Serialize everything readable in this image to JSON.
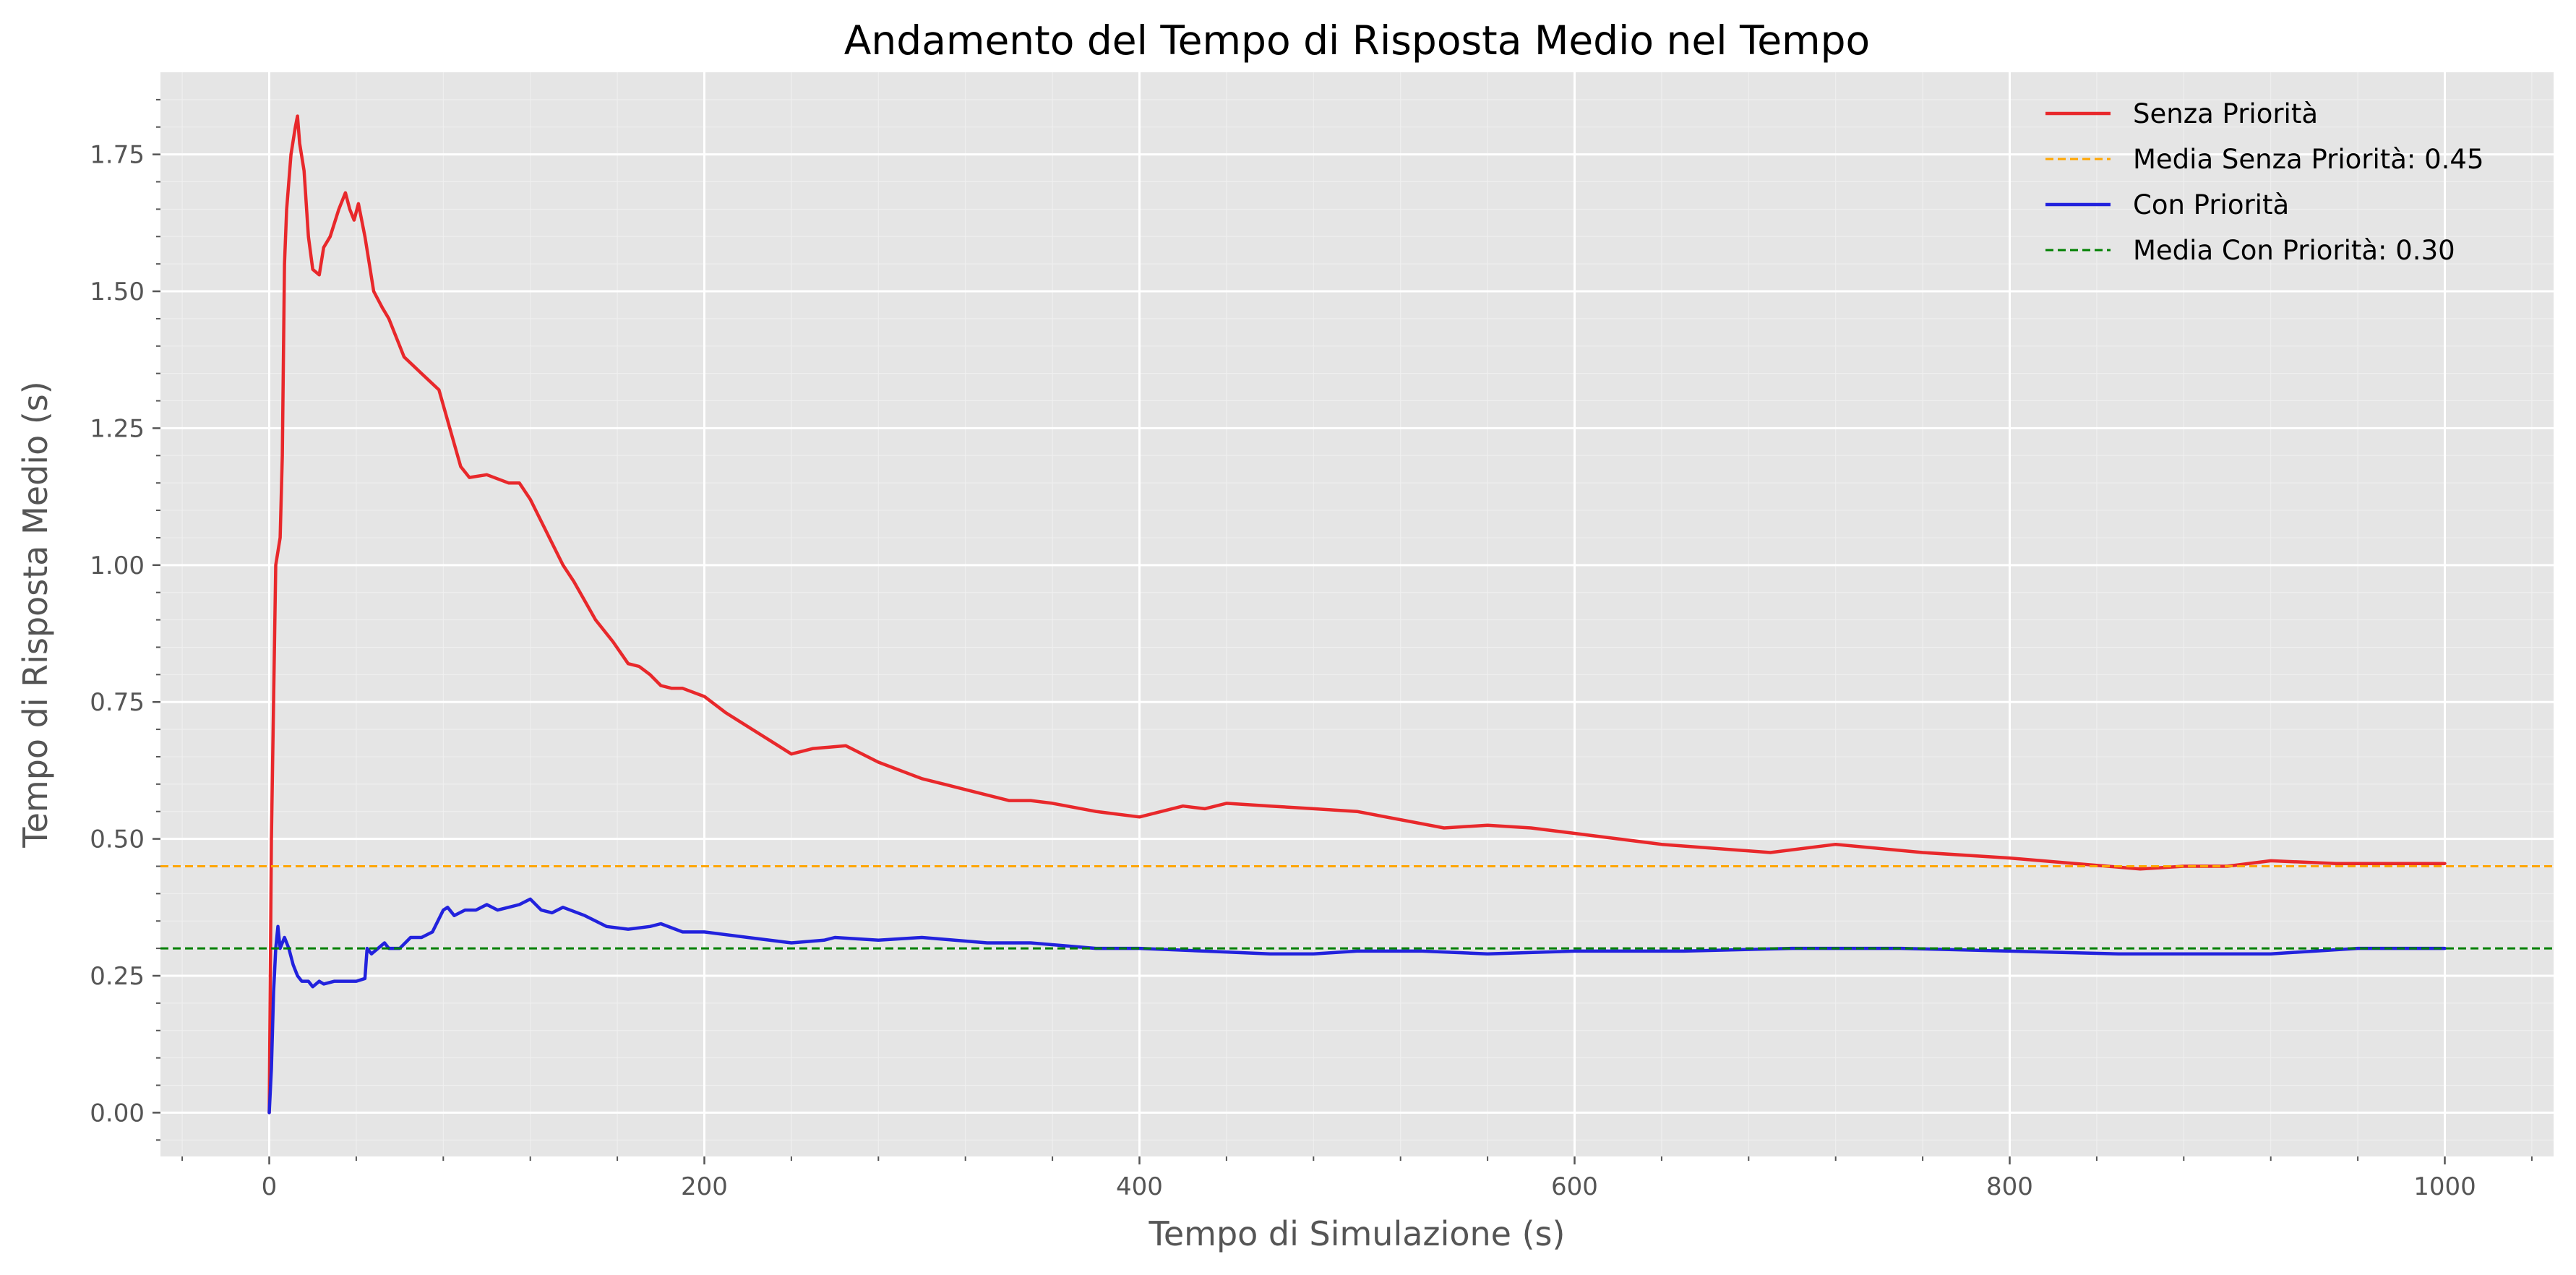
{
  "chart_data": {
    "type": "line",
    "title": "Andamento del Tempo di Risposta Medio nel Tempo",
    "xlabel": "Tempo di Simulazione (s)",
    "ylabel": "Tempo di Risposta Medio (s)",
    "xlim": [
      -50,
      1050
    ],
    "ylim": [
      -0.08,
      1.9
    ],
    "xticks": [
      0,
      200,
      400,
      600,
      800,
      1000
    ],
    "xtick_labels": [
      "0",
      "200",
      "400",
      "600",
      "800",
      "1000"
    ],
    "yticks": [
      0.0,
      0.25,
      0.5,
      0.75,
      1.0,
      1.25,
      1.5,
      1.75
    ],
    "ytick_labels": [
      "0.00",
      "0.25",
      "0.50",
      "0.75",
      "1.00",
      "1.25",
      "1.50",
      "1.75"
    ],
    "grid": true,
    "minor_grid": true,
    "background": "#e5e5e5",
    "legend_position": "top-right",
    "series": [
      {
        "name": "Senza Priorità",
        "color": "#e8282b",
        "style": "solid",
        "x": [
          0,
          1,
          3,
          5,
          6,
          7,
          8,
          10,
          12,
          13,
          14,
          16,
          18,
          20,
          23,
          25,
          28,
          32,
          35,
          37,
          39,
          41,
          44,
          46,
          48,
          52,
          55,
          60,
          62,
          70,
          78,
          83,
          88,
          92,
          100,
          110,
          115,
          120,
          125,
          135,
          140,
          150,
          158,
          165,
          170,
          175,
          180,
          185,
          190,
          200,
          210,
          230,
          240,
          250,
          265,
          280,
          300,
          310,
          320,
          340,
          350,
          360,
          380,
          400,
          420,
          430,
          440,
          460,
          480,
          500,
          540,
          560,
          580,
          600,
          640,
          690,
          720,
          760,
          800,
          830,
          860,
          880,
          900,
          920,
          950,
          970,
          1000
        ],
        "y": [
          0.0,
          0.5,
          1.0,
          1.05,
          1.2,
          1.55,
          1.65,
          1.75,
          1.8,
          1.82,
          1.77,
          1.72,
          1.6,
          1.54,
          1.53,
          1.58,
          1.6,
          1.65,
          1.68,
          1.65,
          1.63,
          1.66,
          1.6,
          1.55,
          1.5,
          1.47,
          1.45,
          1.4,
          1.38,
          1.35,
          1.32,
          1.25,
          1.18,
          1.16,
          1.165,
          1.15,
          1.15,
          1.12,
          1.08,
          1.0,
          0.97,
          0.9,
          0.86,
          0.82,
          0.815,
          0.8,
          0.78,
          0.775,
          0.775,
          0.76,
          0.73,
          0.68,
          0.655,
          0.665,
          0.67,
          0.64,
          0.61,
          0.6,
          0.59,
          0.57,
          0.57,
          0.565,
          0.55,
          0.54,
          0.56,
          0.555,
          0.565,
          0.56,
          0.555,
          0.55,
          0.52,
          0.525,
          0.52,
          0.51,
          0.49,
          0.475,
          0.49,
          0.475,
          0.465,
          0.455,
          0.445,
          0.45,
          0.45,
          0.46,
          0.455,
          0.455,
          0.455
        ]
      },
      {
        "name": "Con Priorità",
        "color": "#2222dd",
        "style": "solid",
        "x": [
          0,
          1,
          2,
          3,
          4,
          5,
          7,
          9,
          11,
          13,
          15,
          18,
          20,
          23,
          25,
          30,
          35,
          40,
          44,
          45,
          47,
          50,
          53,
          55,
          60,
          65,
          70,
          75,
          80,
          82,
          85,
          90,
          95,
          100,
          105,
          110,
          115,
          120,
          125,
          130,
          135,
          145,
          155,
          165,
          175,
          180,
          190,
          200,
          220,
          240,
          255,
          260,
          280,
          300,
          315,
          330,
          350,
          380,
          400,
          430,
          460,
          480,
          500,
          530,
          560,
          600,
          650,
          700,
          750,
          800,
          850,
          880,
          920,
          960,
          1000
        ],
        "y": [
          0.0,
          0.08,
          0.22,
          0.3,
          0.34,
          0.3,
          0.32,
          0.3,
          0.27,
          0.25,
          0.24,
          0.24,
          0.23,
          0.24,
          0.235,
          0.24,
          0.24,
          0.24,
          0.245,
          0.3,
          0.29,
          0.3,
          0.31,
          0.3,
          0.3,
          0.32,
          0.32,
          0.33,
          0.37,
          0.375,
          0.36,
          0.37,
          0.37,
          0.38,
          0.37,
          0.375,
          0.38,
          0.39,
          0.37,
          0.365,
          0.375,
          0.36,
          0.34,
          0.335,
          0.34,
          0.345,
          0.33,
          0.33,
          0.32,
          0.31,
          0.315,
          0.32,
          0.315,
          0.32,
          0.315,
          0.31,
          0.31,
          0.3,
          0.3,
          0.295,
          0.29,
          0.29,
          0.295,
          0.295,
          0.29,
          0.295,
          0.295,
          0.3,
          0.3,
          0.295,
          0.29,
          0.29,
          0.29,
          0.3,
          0.3
        ]
      },
      {
        "name": "Media Senza Priorità: 0.45",
        "color": "#ffa500",
        "style": "dashed",
        "hline": 0.45
      },
      {
        "name": "Media Con Priorità: 0.30",
        "color": "#008000",
        "style": "dashed",
        "hline": 0.3
      }
    ],
    "legend_order": [
      0,
      2,
      1,
      3
    ]
  }
}
